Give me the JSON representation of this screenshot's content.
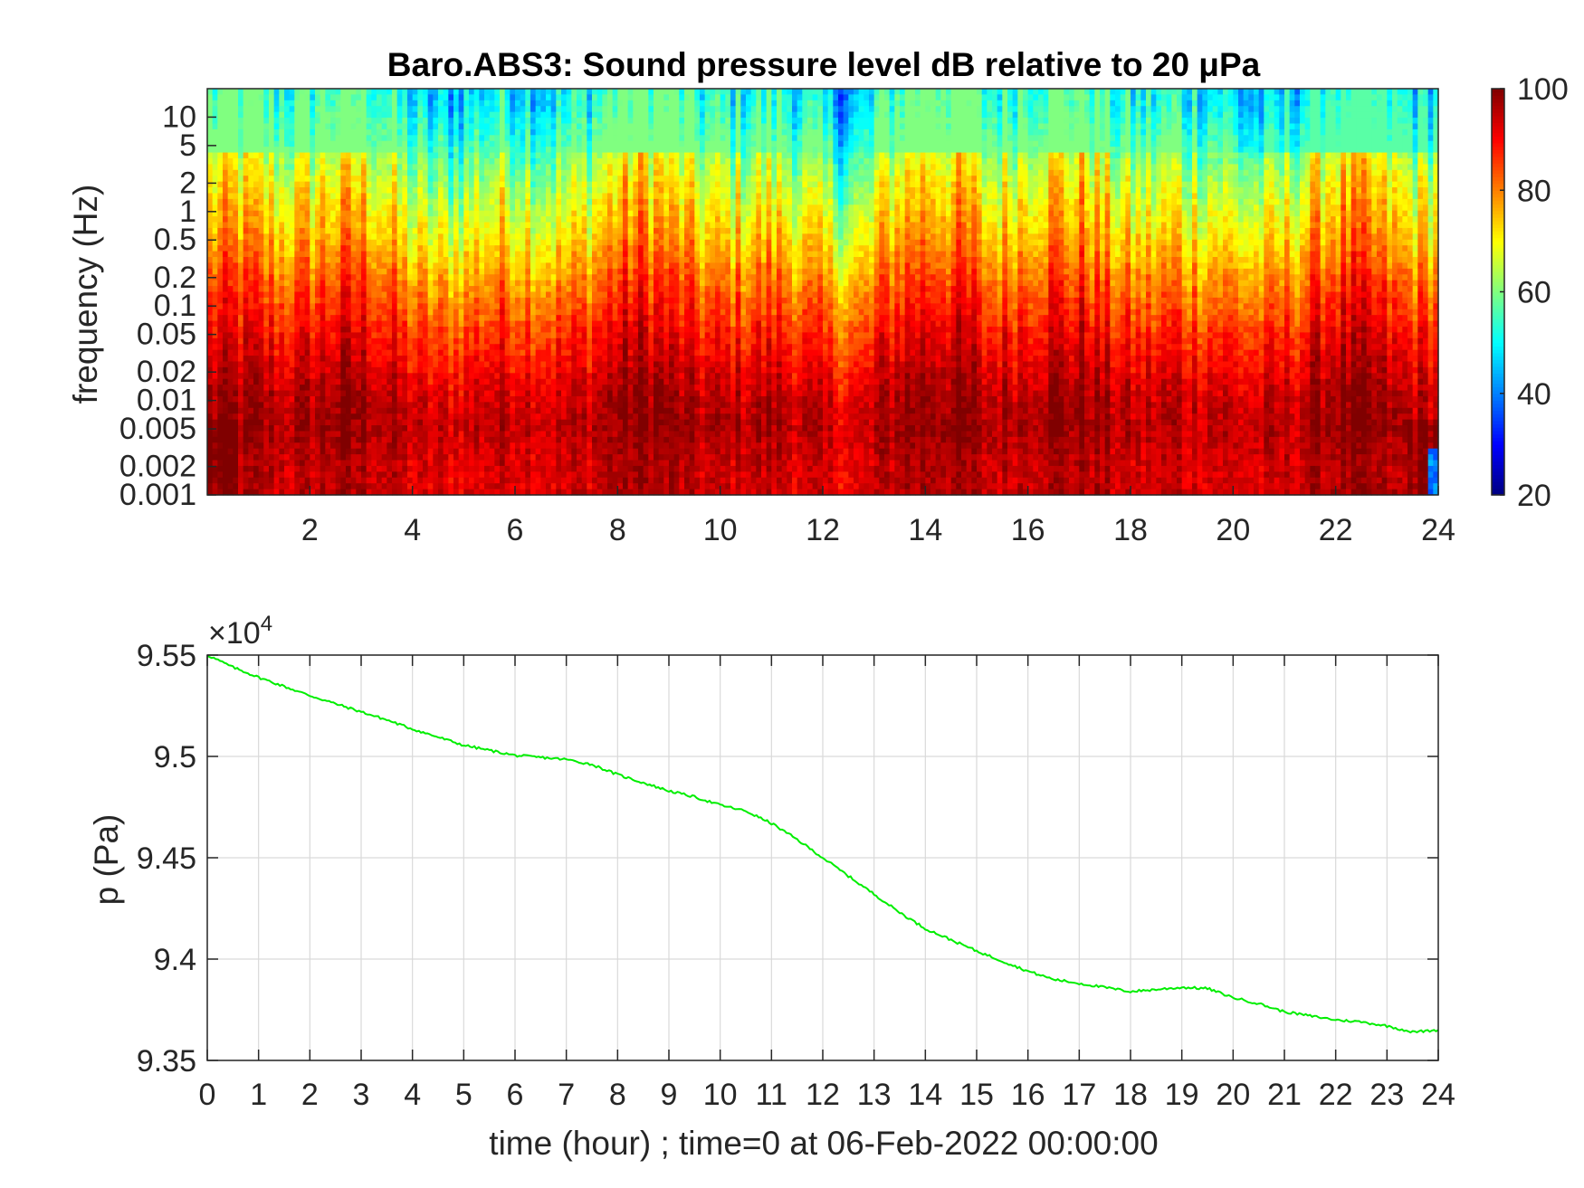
{
  "colors": {
    "line": "#00ee00",
    "axis": "#262626",
    "grid": "#d9d9d9",
    "background": "#ffffff",
    "colormap": [
      "#00008f",
      "#0000ff",
      "#00ffff",
      "#ffff00",
      "#ff0000",
      "#800000"
    ]
  },
  "chart_data": [
    {
      "type": "heatmap",
      "title": "Baro.ABS3: Sound pressure level dB relative to 20 μPa",
      "xlabel": "",
      "ylabel": "frequency (Hz)",
      "xlim": [
        0,
        24
      ],
      "ylim": [
        0.001,
        20
      ],
      "y_scale": "log",
      "x_ticks": [
        2,
        4,
        6,
        8,
        10,
        12,
        14,
        16,
        18,
        20,
        22,
        24
      ],
      "x_tick_labels": [
        "2",
        "4",
        "6",
        "8",
        "10",
        "12",
        "14",
        "16",
        "18",
        "20",
        "22",
        "24"
      ],
      "y_ticks": [
        10,
        5,
        2,
        1,
        0.5,
        0.2,
        0.1,
        0.05,
        0.02,
        0.01,
        0.005,
        0.002,
        0.001
      ],
      "y_tick_labels": [
        "10",
        "5",
        "2",
        "1",
        "0.5",
        "0.2",
        "0.1",
        "0.05",
        "0.02",
        "0.01",
        "0.005",
        "0.002",
        "0.001"
      ],
      "colorbar": {
        "colormap": "jet",
        "range": [
          20,
          100
        ],
        "ticks": [
          20,
          40,
          60,
          80,
          100
        ],
        "tick_labels": [
          "20",
          "40",
          "60",
          "80",
          "100"
        ]
      },
      "level_profile_db": {
        "frequencies_hz": [
          20,
          10,
          5,
          2,
          1,
          0.5,
          0.2,
          0.1,
          0.05,
          0.02,
          0.01,
          0.005,
          0.002,
          0.001
        ],
        "values": [
          52,
          55,
          60,
          66,
          70,
          74,
          80,
          84,
          88,
          92,
          95,
          96,
          94,
          94
        ]
      },
      "grid": false
    },
    {
      "type": "line",
      "title": "",
      "xlabel": "time (hour) ; time=0 at 06-Feb-2022 00:00:00",
      "ylabel": "p (Pa)",
      "xlim": [
        0,
        24
      ],
      "ylim": [
        93500,
        95500
      ],
      "y_exponent_label": "×10",
      "y_exponent": "4",
      "x_ticks": [
        0,
        1,
        2,
        3,
        4,
        5,
        6,
        7,
        8,
        9,
        10,
        11,
        12,
        13,
        14,
        15,
        16,
        17,
        18,
        19,
        20,
        21,
        22,
        23,
        24
      ],
      "x_tick_labels": [
        "0",
        "1",
        "2",
        "3",
        "4",
        "5",
        "6",
        "7",
        "8",
        "9",
        "10",
        "11",
        "12",
        "13",
        "14",
        "15",
        "16",
        "17",
        "18",
        "19",
        "20",
        "21",
        "22",
        "23",
        "24"
      ],
      "y_ticks": [
        93500,
        94000,
        94500,
        95000,
        95500
      ],
      "y_tick_labels": [
        "9.35",
        "9.4",
        "9.45",
        "9.5",
        "9.55"
      ],
      "grid": true,
      "series": [
        {
          "x": [
            0,
            0.5,
            1,
            1.5,
            2,
            2.5,
            3,
            3.5,
            4,
            4.5,
            5,
            5.5,
            6,
            6.5,
            7,
            7.5,
            8,
            8.5,
            9,
            9.5,
            10,
            10.5,
            11,
            11.5,
            12,
            12.5,
            13,
            13.5,
            14,
            14.5,
            15,
            15.5,
            16,
            16.5,
            17,
            17.5,
            18,
            18.5,
            19,
            19.5,
            20,
            20.5,
            21,
            21.5,
            22,
            22.5,
            23,
            23.5,
            24
          ],
          "values": [
            95500,
            95440,
            95390,
            95345,
            95300,
            95260,
            95220,
            95180,
            95135,
            95095,
            95055,
            95030,
            95005,
            94995,
            94985,
            94960,
            94910,
            94870,
            94830,
            94800,
            94760,
            94730,
            94670,
            94590,
            94500,
            94410,
            94320,
            94230,
            94150,
            94095,
            94040,
            93990,
            93940,
            93900,
            93880,
            93860,
            93840,
            93850,
            93860,
            93855,
            93810,
            93780,
            93740,
            93720,
            93700,
            93690,
            93670,
            93640,
            93650
          ]
        }
      ]
    }
  ]
}
